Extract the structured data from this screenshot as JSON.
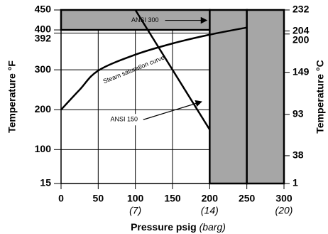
{
  "chart_data": {
    "type": "line",
    "y_label": "Temperature °F",
    "y2_label": "Temperature °C",
    "x_label": "Pressure psig",
    "x_label_unit": "(barg)",
    "xlim": [
      0,
      300
    ],
    "xticks": [
      0,
      50,
      100,
      150,
      200,
      250,
      300
    ],
    "xticks2": [
      {
        "value": 100,
        "label": "(7)"
      },
      {
        "value": 200,
        "label": "(14)"
      },
      {
        "value": 300,
        "label": "(20)"
      }
    ],
    "ylim": [
      15,
      450
    ],
    "yticks": [
      15,
      100,
      200,
      300,
      392,
      400,
      450
    ],
    "y2lim": [
      1,
      232
    ],
    "y2ticks": [
      1,
      38,
      93,
      149,
      200,
      204,
      232
    ],
    "grid": true,
    "shaded": [
      {
        "x": [
          200,
          250
        ],
        "y": [
          15,
          450
        ],
        "color": "#a6a6a6"
      },
      {
        "x": [
          250,
          300
        ],
        "y": [
          15,
          450
        ],
        "color": "#a6a6a6"
      },
      {
        "x": [
          0,
          200
        ],
        "y": [
          400,
          450
        ],
        "color": "#a6a6a6"
      }
    ],
    "series": [
      {
        "name": "Steam saturation curve",
        "color": "#000000",
        "x": [
          0,
          25,
          50,
          100,
          150,
          200,
          250
        ],
        "values": [
          200,
          250,
          298,
          338,
          366,
          388,
          406
        ]
      },
      {
        "name": "ANSI 150",
        "color": "#000000",
        "x": [
          100,
          200
        ],
        "values": [
          450,
          150
        ]
      }
    ],
    "annotations": [
      "ANSI 300"
    ]
  }
}
